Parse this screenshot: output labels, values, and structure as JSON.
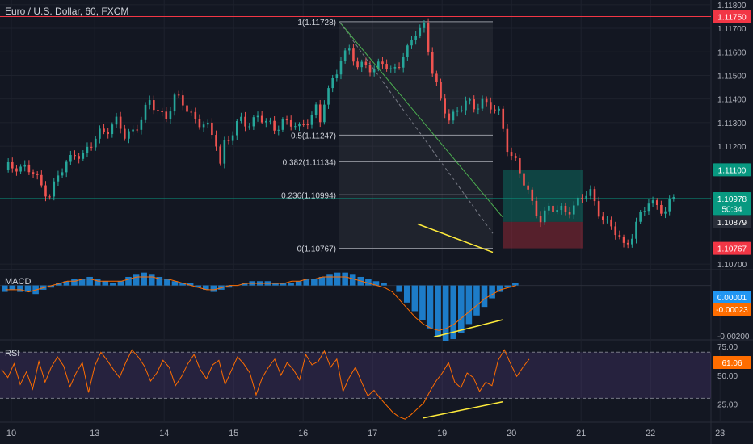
{
  "title": "Euro / U.S. Dollar, 60, FXCM",
  "chart_data": [
    {
      "type": "candlestick",
      "pane": "price",
      "ylim": [
        1.1068,
        1.1182
      ],
      "yticks": [
        "1.11800",
        "1.11700",
        "1.11600",
        "1.11500",
        "1.11400",
        "1.11300",
        "1.11200",
        "1.10700"
      ],
      "x_ticks": [
        "10",
        "13",
        "14",
        "15",
        "16",
        "17",
        "19",
        "20",
        "21",
        "22",
        "23"
      ],
      "price_labels": [
        {
          "text": "1.11750",
          "value": 1.1175,
          "color": "#f23645"
        },
        {
          "text": "1.11100",
          "value": 1.111,
          "color": "#089981"
        },
        {
          "text": "1.10978",
          "value": 1.10978,
          "color": "#089981"
        },
        {
          "text": "50:34",
          "value": 1.10935,
          "color": "#089981"
        },
        {
          "text": "1.10879",
          "value": 1.10879,
          "color": "#2a2e39"
        },
        {
          "text": "1.10767",
          "value": 1.10767,
          "color": "#f23645"
        }
      ],
      "fib_levels": [
        {
          "label": "1(1.11728)",
          "value": 1.11728
        },
        {
          "label": "0.5(1.11247)",
          "value": 1.11247
        },
        {
          "label": "0.382(1.11134)",
          "value": 1.11134
        },
        {
          "label": "0.236(1.10994)",
          "value": 1.10994
        },
        {
          "label": "0(1.10767)",
          "value": 1.10767
        }
      ],
      "horizontal_lines": [
        {
          "value": 1.1175,
          "color": "#f23645"
        },
        {
          "value": 1.10978,
          "color": "#089981"
        }
      ],
      "position_box": {
        "entry": 1.10879,
        "target": 1.111,
        "stop": 1.10767
      },
      "close_path": [
        [
          0,
          1.111
        ],
        [
          3,
          1.1112
        ],
        [
          5,
          1.1111
        ],
        [
          7,
          1.1108
        ],
        [
          9,
          1.1103
        ],
        [
          11,
          1.11
        ],
        [
          13,
          1.1107
        ],
        [
          15,
          1.1112
        ],
        [
          17,
          1.1118
        ],
        [
          19,
          1.1116
        ],
        [
          21,
          1.112
        ],
        [
          23,
          1.1126
        ],
        [
          25,
          1.1128
        ],
        [
          27,
          1.113
        ],
        [
          29,
          1.1124
        ],
        [
          31,
          1.1127
        ],
        [
          33,
          1.1132
        ],
        [
          35,
          1.1138
        ],
        [
          37,
          1.1135
        ],
        [
          39,
          1.1133
        ],
        [
          41,
          1.114
        ],
        [
          43,
          1.1138
        ],
        [
          45,
          1.1134
        ],
        [
          47,
          1.113
        ],
        [
          49,
          1.1127
        ],
        [
          51,
          1.1122
        ],
        [
          52,
          1.1113
        ],
        [
          53,
          1.1122
        ],
        [
          55,
          1.1125
        ],
        [
          57,
          1.1131
        ],
        [
          59,
          1.113
        ],
        [
          61,
          1.1133
        ],
        [
          63,
          1.1129
        ],
        [
          65,
          1.1128
        ],
        [
          67,
          1.1131
        ],
        [
          69,
          1.1129
        ],
        [
          71,
          1.1127
        ],
        [
          73,
          1.1132
        ],
        [
          75,
          1.1136
        ],
        [
          76,
          1.113
        ],
        [
          77,
          1.1138
        ],
        [
          79,
          1.1148
        ],
        [
          81,
          1.1158
        ],
        [
          83,
          1.116
        ],
        [
          85,
          1.1153
        ],
        [
          87,
          1.1156
        ],
        [
          89,
          1.1152
        ],
        [
          91,
          1.1155
        ],
        [
          93,
          1.1152
        ],
        [
          95,
          1.1156
        ],
        [
          97,
          1.116
        ],
        [
          99,
          1.1168
        ],
        [
          101,
          1.1172
        ],
        [
          103,
          1.1152
        ],
        [
          105,
          1.1138
        ],
        [
          107,
          1.1132
        ],
        [
          109,
          1.1136
        ],
        [
          111,
          1.1138
        ],
        [
          113,
          1.1136
        ],
        [
          115,
          1.114
        ],
        [
          117,
          1.1137
        ],
        [
          119,
          1.1133
        ],
        [
          121,
          1.112
        ],
        [
          123,
          1.1114
        ],
        [
          125,
          1.1104
        ],
        [
          127,
          1.1095
        ],
        [
          129,
          1.109
        ],
        [
          131,
          1.1094
        ],
        [
          133,
          1.1092
        ],
        [
          135,
          1.1093
        ],
        [
          137,
          1.1095
        ],
        [
          139,
          1.1098
        ],
        [
          141,
          1.11
        ],
        [
          143,
          1.1093
        ],
        [
          145,
          1.1087
        ],
        [
          147,
          1.1083
        ],
        [
          149,
          1.1078
        ],
        [
          151,
          1.1083
        ],
        [
          153,
          1.109
        ],
        [
          155,
          1.1096
        ],
        [
          157,
          1.1096
        ],
        [
          159,
          1.1092
        ],
        [
          161,
          1.1098
        ]
      ],
      "annotations": [
        "price higher-low trendline (yellow)",
        "descending trendline (green)"
      ]
    },
    {
      "type": "histogram+line",
      "pane": "macd",
      "label": "MACD",
      "ylim": [
        -0.00025,
        7e-05
      ],
      "yticks": [
        "-0.00200"
      ],
      "price_labels": [
        {
          "text": "0.00001",
          "value": 1e-05,
          "color": "#2196f3"
        },
        {
          "text": "-0.00023",
          "value": -0.00023,
          "color": "#ff6d00"
        }
      ],
      "hist": [
        -3,
        -2,
        -3,
        -3,
        -4,
        -2,
        -1,
        1,
        2,
        3,
        3,
        4,
        3,
        2,
        1,
        2,
        4,
        5,
        6,
        5,
        4,
        3,
        2,
        1,
        1,
        -1,
        -2,
        -3,
        -2,
        -1,
        0,
        1,
        2,
        2,
        2,
        1,
        1,
        1,
        2,
        3,
        3,
        4,
        5,
        6,
        6,
        5,
        4,
        3,
        2,
        1,
        0,
        -3,
        -8,
        -12,
        -16,
        -20,
        -24,
        -26,
        -25,
        -22,
        -18,
        -14,
        -10,
        -6,
        -3,
        -1,
        1,
        0
      ],
      "signal": [
        -2,
        -2,
        -2,
        -3,
        -2,
        -1,
        0,
        1,
        2,
        2,
        3,
        3,
        2,
        2,
        2,
        2,
        3,
        4,
        4,
        4,
        3,
        3,
        2,
        1,
        0,
        -1,
        -2,
        -2,
        -1,
        0,
        0,
        1,
        1,
        1,
        1,
        1,
        1,
        2,
        2,
        3,
        3,
        4,
        4,
        4,
        4,
        3,
        2,
        1,
        0,
        -1,
        -3,
        -7,
        -11,
        -15,
        -18,
        -20,
        -21,
        -20,
        -18,
        -15,
        -12,
        -9,
        -6,
        -4,
        -2,
        -1,
        0
      ]
    },
    {
      "type": "line",
      "pane": "rsi",
      "label": "RSI",
      "ylim": [
        10,
        80
      ],
      "yticks": [
        "75.00",
        "50.00",
        "25.00"
      ],
      "bands": [
        30,
        70
      ],
      "last_label": {
        "text": "61.06",
        "value": 61.06,
        "color": "#ff6d00"
      },
      "values": [
        55,
        48,
        60,
        42,
        53,
        38,
        62,
        44,
        57,
        66,
        58,
        40,
        52,
        61,
        35,
        58,
        70,
        63,
        55,
        48,
        61,
        72,
        66,
        58,
        45,
        52,
        63,
        57,
        41,
        49,
        60,
        68,
        55,
        47,
        59,
        63,
        42,
        54,
        66,
        60,
        52,
        33,
        48,
        57,
        64,
        50,
        61,
        55,
        46,
        68,
        59,
        62,
        71,
        57,
        64,
        36,
        48,
        57,
        44,
        32,
        37,
        30,
        24,
        18,
        14,
        12,
        16,
        21,
        26,
        36,
        45,
        52,
        61,
        44,
        39,
        52,
        48,
        36,
        44,
        41,
        63,
        72,
        60,
        49,
        57,
        64
      ]
    },
    {
      "type": "annotation",
      "pane": "macd",
      "label": "bullish divergence (yellow line)"
    },
    {
      "type": "annotation",
      "pane": "rsi",
      "label": "bullish divergence (yellow line)"
    }
  ]
}
